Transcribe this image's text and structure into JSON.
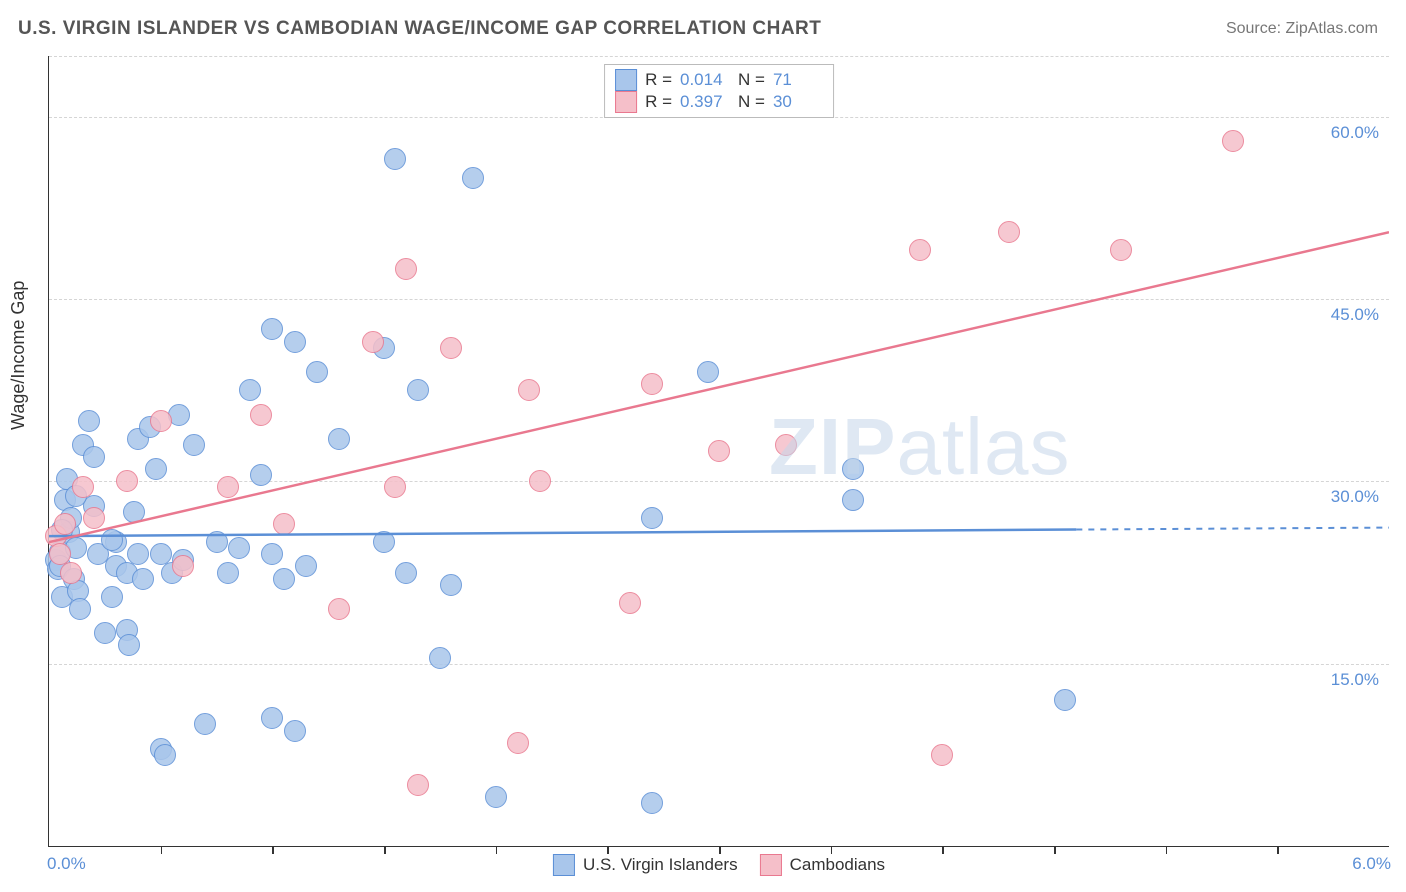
{
  "header": {
    "title": "U.S. VIRGIN ISLANDER VS CAMBODIAN WAGE/INCOME GAP CORRELATION CHART",
    "source": "Source: ZipAtlas.com"
  },
  "chart": {
    "type": "scatter",
    "ylabel": "Wage/Income Gap",
    "xlim": [
      0,
      6.0
    ],
    "ylim": [
      0,
      65
    ],
    "y_ticks": [
      15,
      30,
      45,
      60
    ],
    "y_tick_labels": [
      "15.0%",
      "30.0%",
      "45.0%",
      "60.0%"
    ],
    "x_ticks": [
      0.5,
      1.0,
      1.5,
      2.0,
      2.5,
      3.0,
      3.5,
      4.0,
      4.5,
      5.0,
      5.5
    ],
    "x_min_label": "0.0%",
    "x_max_label": "6.0%",
    "grid_color": "#d5d5d5",
    "background": "#ffffff",
    "axis_color": "#333333",
    "marker_radius": 11,
    "marker_opacity_fill": 0.3,
    "watermark": {
      "text_bold": "ZIP",
      "text_light": "atlas"
    },
    "series": [
      {
        "name": "U.S. Virgin Islanders",
        "key": "usvi",
        "color_stroke": "#5b8fd6",
        "color_fill": "#a9c6eb",
        "R": "0.014",
        "N": "71",
        "regression": {
          "y_at_x0": 25.5,
          "y_at_x6": 26.2,
          "x_solid_end": 4.6
        },
        "points": [
          [
            0.03,
            23.5
          ],
          [
            0.04,
            22.8
          ],
          [
            0.05,
            24.2
          ],
          [
            0.06,
            20.5
          ],
          [
            0.07,
            28.5
          ],
          [
            0.08,
            30.2
          ],
          [
            0.05,
            23.0
          ],
          [
            0.09,
            25.8
          ],
          [
            0.1,
            27.0
          ],
          [
            0.11,
            22.0
          ],
          [
            0.12,
            24.5
          ],
          [
            0.13,
            21.0
          ],
          [
            0.14,
            19.5
          ],
          [
            0.15,
            33.0
          ],
          [
            0.18,
            35.0
          ],
          [
            0.2,
            28.0
          ],
          [
            0.22,
            24.0
          ],
          [
            0.25,
            17.5
          ],
          [
            0.28,
            20.5
          ],
          [
            0.3,
            23.0
          ],
          [
            0.3,
            25.0
          ],
          [
            0.35,
            22.5
          ],
          [
            0.38,
            27.5
          ],
          [
            0.4,
            24.0
          ],
          [
            0.4,
            33.5
          ],
          [
            0.42,
            22.0
          ],
          [
            0.45,
            34.5
          ],
          [
            0.48,
            31.0
          ],
          [
            0.5,
            24.0
          ],
          [
            0.5,
            8.0
          ],
          [
            0.52,
            7.5
          ],
          [
            0.55,
            22.5
          ],
          [
            0.58,
            35.5
          ],
          [
            0.6,
            23.5
          ],
          [
            0.65,
            33.0
          ],
          [
            0.7,
            10.0
          ],
          [
            0.75,
            25.0
          ],
          [
            0.8,
            22.5
          ],
          [
            0.85,
            24.5
          ],
          [
            0.9,
            37.5
          ],
          [
            0.95,
            30.5
          ],
          [
            1.0,
            24.0
          ],
          [
            1.0,
            42.5
          ],
          [
            1.0,
            10.5
          ],
          [
            1.05,
            22.0
          ],
          [
            1.1,
            41.5
          ],
          [
            1.1,
            9.5
          ],
          [
            1.15,
            23.0
          ],
          [
            1.2,
            39.0
          ],
          [
            1.3,
            33.5
          ],
          [
            1.5,
            41.0
          ],
          [
            1.5,
            25.0
          ],
          [
            1.55,
            56.5
          ],
          [
            1.6,
            22.5
          ],
          [
            1.65,
            37.5
          ],
          [
            1.75,
            15.5
          ],
          [
            1.8,
            21.5
          ],
          [
            1.9,
            55.0
          ],
          [
            2.0,
            4.0
          ],
          [
            2.7,
            27.0
          ],
          [
            2.7,
            3.5
          ],
          [
            2.95,
            39.0
          ],
          [
            3.6,
            28.5
          ],
          [
            3.6,
            31.0
          ],
          [
            4.55,
            12.0
          ],
          [
            0.35,
            17.8
          ],
          [
            0.36,
            16.5
          ],
          [
            0.2,
            32.0
          ],
          [
            0.12,
            28.8
          ],
          [
            0.28,
            25.2
          ],
          [
            0.06,
            26.0
          ]
        ]
      },
      {
        "name": "Cambodians",
        "key": "camb",
        "color_stroke": "#e9788f",
        "color_fill": "#f5bfc9",
        "R": "0.397",
        "N": "30",
        "regression": {
          "y_at_x0": 25.0,
          "y_at_x6": 50.5,
          "x_solid_end": 6.0
        },
        "points": [
          [
            0.03,
            25.5
          ],
          [
            0.05,
            24.0
          ],
          [
            0.07,
            26.5
          ],
          [
            0.1,
            22.5
          ],
          [
            0.15,
            29.5
          ],
          [
            0.2,
            27.0
          ],
          [
            0.35,
            30.0
          ],
          [
            0.5,
            35.0
          ],
          [
            0.6,
            23.0
          ],
          [
            0.8,
            29.5
          ],
          [
            0.95,
            35.5
          ],
          [
            1.05,
            26.5
          ],
          [
            1.3,
            19.5
          ],
          [
            1.45,
            41.5
          ],
          [
            1.55,
            29.5
          ],
          [
            1.65,
            5.0
          ],
          [
            1.6,
            47.5
          ],
          [
            1.8,
            41.0
          ],
          [
            2.2,
            30.0
          ],
          [
            2.1,
            8.5
          ],
          [
            2.15,
            37.5
          ],
          [
            2.6,
            20.0
          ],
          [
            2.7,
            38.0
          ],
          [
            3.0,
            32.5
          ],
          [
            3.3,
            33.0
          ],
          [
            3.9,
            49.0
          ],
          [
            4.0,
            7.5
          ],
          [
            4.3,
            50.5
          ],
          [
            4.8,
            49.0
          ],
          [
            5.3,
            58.0
          ]
        ]
      }
    ],
    "legend_bottom": [
      {
        "key": "usvi",
        "label": "U.S. Virgin Islanders"
      },
      {
        "key": "camb",
        "label": "Cambodians"
      }
    ]
  }
}
